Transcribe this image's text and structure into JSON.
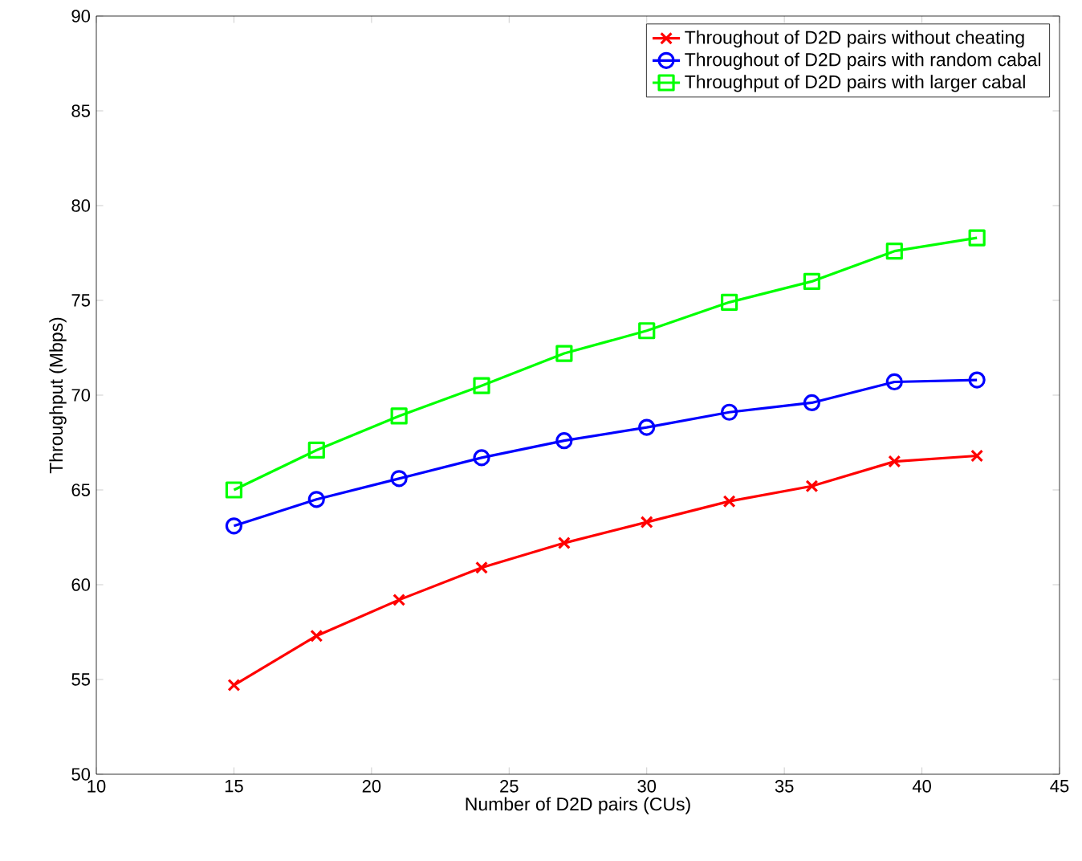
{
  "chart_data": {
    "type": "line",
    "xlabel": "Number of D2D pairs (CUs)",
    "ylabel": "Throughput (Mbps)",
    "x": [
      15,
      18,
      21,
      24,
      27,
      30,
      33,
      36,
      39,
      42
    ],
    "series": [
      {
        "name": "Throughout of D2D pairs without cheating",
        "color": "#ff0000",
        "marker": "cross",
        "values": [
          54.7,
          57.3,
          59.2,
          60.9,
          62.2,
          63.3,
          64.4,
          65.2,
          66.5,
          66.8
        ]
      },
      {
        "name": "Throughout of D2D pairs with random cabal",
        "color": "#0000ff",
        "marker": "circle",
        "values": [
          63.1,
          64.5,
          65.6,
          66.7,
          67.6,
          68.3,
          69.1,
          69.6,
          70.7,
          70.8
        ]
      },
      {
        "name": "Throughput of D2D pairs with larger cabal",
        "color": "#00ff00",
        "marker": "square",
        "values": [
          65.0,
          67.1,
          68.9,
          70.5,
          72.2,
          73.4,
          74.9,
          76.0,
          77.6,
          78.3
        ]
      }
    ],
    "xlim": [
      10,
      45
    ],
    "ylim": [
      50,
      90
    ],
    "xticks": [
      10,
      15,
      20,
      25,
      30,
      35,
      40,
      45
    ],
    "yticks": [
      50,
      55,
      60,
      65,
      70,
      75,
      80,
      85,
      90
    ],
    "grid": false,
    "legend": "top right",
    "line_style": "solid"
  }
}
